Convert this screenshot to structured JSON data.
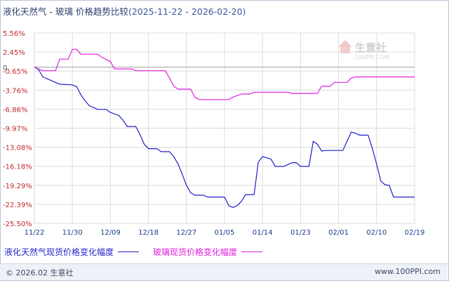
{
  "title": {
    "main": "液化天然气 - 玻璃 价格趋势比较",
    "range": "(2025-11-22 - 2026-02-20)"
  },
  "watermark": {
    "name": "生意社",
    "url": "100PPI.COM"
  },
  "footer": {
    "copyright": "© 2026.02 生意社",
    "site": "www.100PPI.com"
  },
  "colors": {
    "lng": "#1f1fc8",
    "glass": "#e020e0",
    "axis_text": "#c0282d",
    "x_text": "#1a3b8c",
    "grid": "#dcdcdc",
    "zero": "#a0a0a0"
  },
  "chart_data": {
    "type": "line",
    "title": "液化天然气 - 玻璃 价格趋势比较",
    "xlabel": "",
    "ylabel": "",
    "y_ticks": [
      "5.56%",
      "2.45%",
      "-0.65%",
      "-3.76%",
      "-6.86%",
      "-9.97%",
      "-13.08%",
      "-16.18%",
      "-19.29%",
      "-22.39%",
      "-25.50%"
    ],
    "ylim": [
      -25.5,
      5.56
    ],
    "zero_marker": "0",
    "x_ticks": [
      "11/22",
      "11/30",
      "12/09",
      "12/18",
      "12/27",
      "01/05",
      "01/14",
      "01/23",
      "02/01",
      "02/10",
      "02/19"
    ],
    "x_day_range": [
      0,
      90
    ],
    "grid": true,
    "legend_position": "bottom",
    "series": [
      {
        "name": "液化天然气现货价格变化幅度",
        "color": "#1f1fc8",
        "points": [
          [
            0,
            0
          ],
          [
            1,
            -0.4
          ],
          [
            2,
            -1.6
          ],
          [
            4,
            -2.2
          ],
          [
            6,
            -2.8
          ],
          [
            9,
            -2.9
          ],
          [
            10,
            -3.2
          ],
          [
            11,
            -4.5
          ],
          [
            12,
            -5.5
          ],
          [
            13,
            -6.3
          ],
          [
            14,
            -6.6
          ],
          [
            15,
            -6.9
          ],
          [
            17,
            -6.9
          ],
          [
            18,
            -7.4
          ],
          [
            20,
            -7.9
          ],
          [
            21,
            -8.7
          ],
          [
            22,
            -9.7
          ],
          [
            24,
            -9.7
          ],
          [
            25,
            -11.0
          ],
          [
            26,
            -12.6
          ],
          [
            27,
            -13.3
          ],
          [
            29,
            -13.3
          ],
          [
            30,
            -13.8
          ],
          [
            32,
            -13.8
          ],
          [
            33,
            -14.6
          ],
          [
            34,
            -15.8
          ],
          [
            35,
            -17.5
          ],
          [
            36,
            -19.3
          ],
          [
            37,
            -20.5
          ],
          [
            38,
            -20.9
          ],
          [
            40,
            -20.9
          ],
          [
            41,
            -21.2
          ],
          [
            45,
            -21.2
          ],
          [
            46,
            -22.6
          ],
          [
            47,
            -22.9
          ],
          [
            48,
            -22.6
          ],
          [
            49,
            -21.9
          ],
          [
            50,
            -20.8
          ],
          [
            52,
            -20.8
          ],
          [
            53,
            -15.5
          ],
          [
            54,
            -14.6
          ],
          [
            56,
            -15.0
          ],
          [
            57,
            -16.2
          ],
          [
            59,
            -16.2
          ],
          [
            61,
            -15.6
          ],
          [
            62,
            -15.6
          ],
          [
            63,
            -16.2
          ],
          [
            65,
            -16.2
          ],
          [
            66,
            -12.1
          ],
          [
            67,
            -12.6
          ],
          [
            68,
            -13.7
          ],
          [
            69,
            -13.6
          ],
          [
            73,
            -13.6
          ],
          [
            74,
            -12.1
          ],
          [
            75,
            -10.6
          ],
          [
            76,
            -10.8
          ],
          [
            77,
            -11.1
          ],
          [
            79,
            -11.1
          ],
          [
            80,
            -13.3
          ],
          [
            81,
            -15.8
          ],
          [
            82,
            -18.6
          ],
          [
            83,
            -19.2
          ],
          [
            84,
            -19.3
          ],
          [
            85,
            -21.2
          ],
          [
            90,
            -21.2
          ]
        ]
      },
      {
        "name": "玻璃现货价格变化幅度",
        "color": "#e020e0",
        "points": [
          [
            0,
            0
          ],
          [
            2,
            -0.6
          ],
          [
            5,
            -0.6
          ],
          [
            6,
            1.3
          ],
          [
            8,
            1.3
          ],
          [
            9,
            2.9
          ],
          [
            10,
            2.9
          ],
          [
            11,
            2.1
          ],
          [
            15,
            2.1
          ],
          [
            16,
            1.6
          ],
          [
            18,
            0.9
          ],
          [
            19,
            -0.3
          ],
          [
            23,
            -0.3
          ],
          [
            24,
            -0.6
          ],
          [
            31,
            -0.6
          ],
          [
            32,
            -1.8
          ],
          [
            33,
            -3.1
          ],
          [
            34,
            -3.6
          ],
          [
            37,
            -3.6
          ],
          [
            38,
            -4.9
          ],
          [
            39,
            -5.3
          ],
          [
            46,
            -5.3
          ],
          [
            47,
            -4.9
          ],
          [
            49,
            -4.4
          ],
          [
            51,
            -4.4
          ],
          [
            52,
            -4.1
          ],
          [
            60,
            -4.1
          ],
          [
            61,
            -4.3
          ],
          [
            67,
            -4.3
          ],
          [
            68,
            -3.1
          ],
          [
            70,
            -3.1
          ],
          [
            71,
            -2.5
          ],
          [
            74,
            -2.5
          ],
          [
            75,
            -1.8
          ],
          [
            76,
            -1.6
          ],
          [
            90,
            -1.6
          ]
        ]
      }
    ]
  }
}
